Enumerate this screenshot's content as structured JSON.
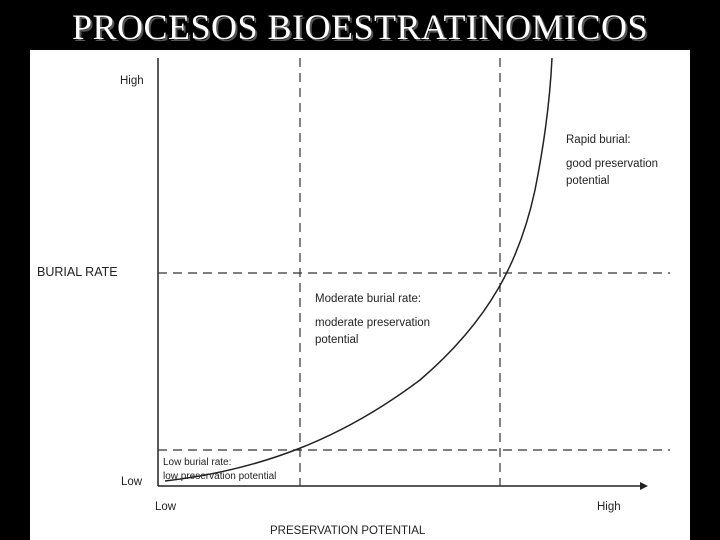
{
  "title": "PROCESOS BIOESTRATINOMICOS",
  "axes": {
    "y_label": "BURIAL RATE",
    "y_high": "High",
    "y_low": "Low",
    "x_label": "PRESERVATION POTENTIAL",
    "x_low": "Low",
    "x_high": "High"
  },
  "zones": [
    {
      "heading": "Rapid burial:",
      "lines": [
        "good preservation",
        "potential"
      ]
    },
    {
      "heading": "Moderate burial rate:",
      "lines": [
        "moderate preservation",
        "potential"
      ]
    },
    {
      "heading": "Low burial rate:",
      "lines": [
        "low preservation potential"
      ]
    }
  ]
}
